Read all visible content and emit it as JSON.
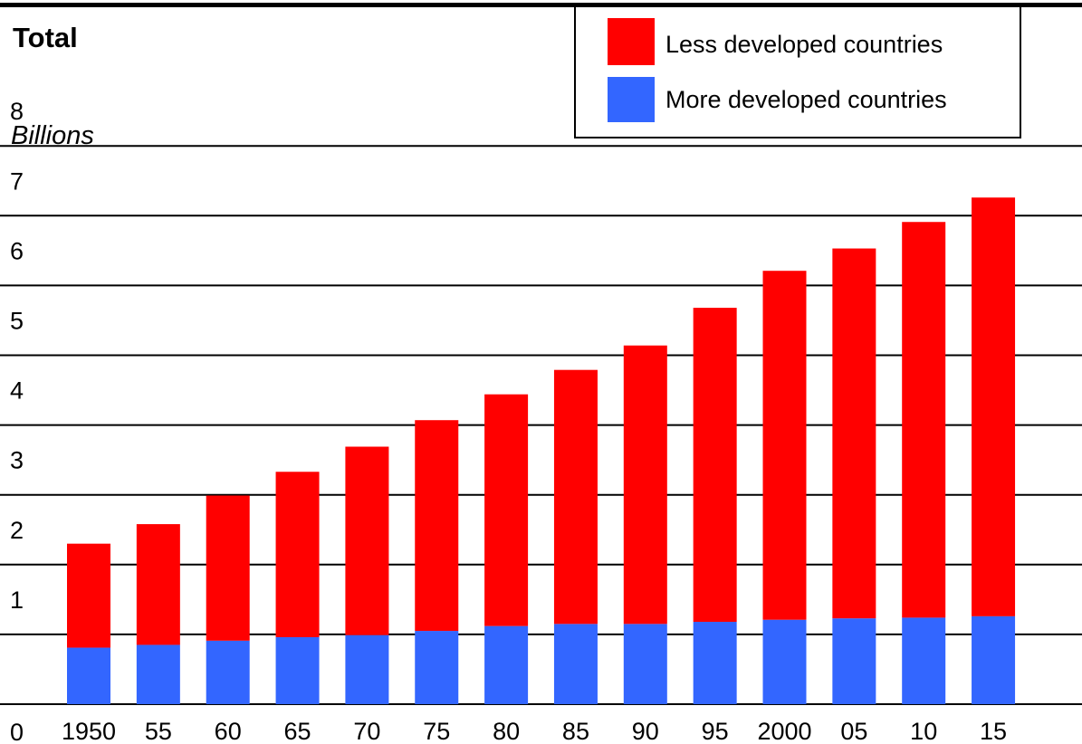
{
  "chart_data": {
    "type": "bar",
    "stacked": true,
    "title": "Total",
    "ylabel": "Billions",
    "xlabel": "",
    "categories": [
      "1950",
      "55",
      "60",
      "65",
      "70",
      "75",
      "80",
      "85",
      "90",
      "95",
      "2000",
      "05",
      "10",
      "15"
    ],
    "series": [
      {
        "name": "More developed countries",
        "color": "#3366ff",
        "values": [
          0.81,
          0.85,
          0.91,
          0.96,
          0.99,
          1.05,
          1.12,
          1.15,
          1.15,
          1.18,
          1.21,
          1.23,
          1.24,
          1.26
        ]
      },
      {
        "name": "Less developed countries",
        "color": "#ff0000",
        "values": [
          1.49,
          1.73,
          2.08,
          2.37,
          2.7,
          3.02,
          3.32,
          3.64,
          3.99,
          4.5,
          5.0,
          5.3,
          5.67,
          6.0
        ]
      }
    ],
    "ylim": [
      0,
      8
    ],
    "yticks": [
      "0",
      "1",
      "2",
      "3",
      "4",
      "5",
      "6",
      "7",
      "8"
    ],
    "grid": true,
    "legend": {
      "placement": "top-right",
      "order": [
        "Less developed countries",
        "More developed countries"
      ]
    }
  }
}
